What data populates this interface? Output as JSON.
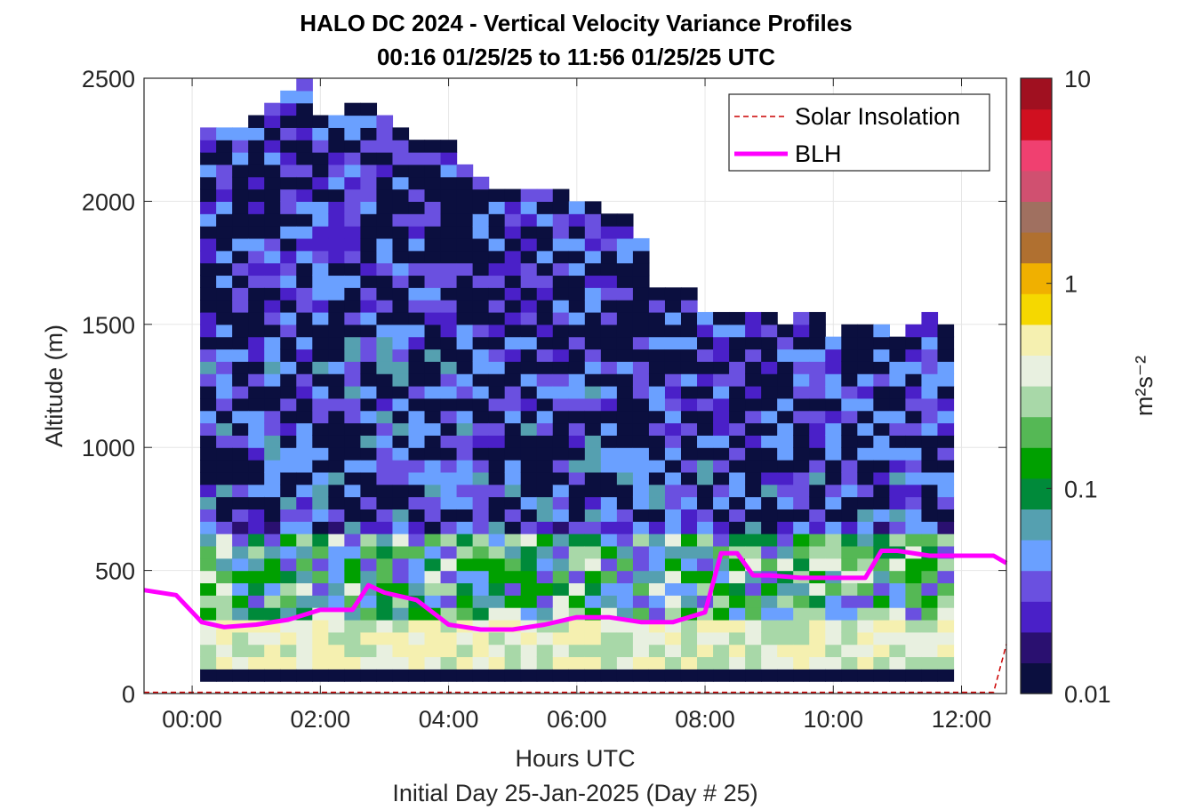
{
  "chart_data": {
    "type": "heatmap",
    "title": "HALO DC 2024 - Vertical Velocity Variance Profiles",
    "subtitle": "00:16 01/25/25 to 11:56 01/25/25  UTC",
    "xlabel": "Hours UTC",
    "xlabel2": "Initial Day 25-Jan-2025 (Day # 25)",
    "ylabel": "Altitude (m)",
    "xlim": [
      -0.75,
      12.7
    ],
    "ylim": [
      0,
      2500
    ],
    "xticks": [
      0,
      2,
      4,
      6,
      8,
      10,
      12
    ],
    "xtick_labels": [
      "00:00",
      "02:00",
      "04:00",
      "06:00",
      "08:00",
      "10:00",
      "12:00"
    ],
    "yticks": [
      0,
      500,
      1000,
      1500,
      2000,
      2500
    ],
    "ytick_labels": [
      "0",
      "500",
      "1000",
      "1500",
      "2000",
      "2500"
    ],
    "grid": true,
    "legend_position": "top-right",
    "legend": [
      {
        "name": "Solar Insolation",
        "style": "dashed",
        "color": "#cc0000"
      },
      {
        "name": "BLH",
        "style": "solid",
        "color": "#ff00ff"
      }
    ],
    "colorbar": {
      "label": "m²s⁻²",
      "scale": "log",
      "range": [
        0.01,
        10
      ],
      "tick_labels": [
        "0.01",
        "0.1",
        "1",
        "10"
      ],
      "colors": [
        "#0b0f3f",
        "#2a1070",
        "#4a20c8",
        "#6a50e0",
        "#6aa0ff",
        "#55a0b0",
        "#008a3a",
        "#00a000",
        "#55b855",
        "#a8d8a8",
        "#e8f0e0",
        "#f5f0b0",
        "#f5d800",
        "#f0b000",
        "#b07030",
        "#a07060",
        "#d05070",
        "#f04070",
        "#d01020",
        "#a01020"
      ]
    },
    "x": [
      0.25,
      0.5,
      0.75,
      1.0,
      1.25,
      1.5,
      1.75,
      2.0,
      2.25,
      2.5,
      2.75,
      3.0,
      3.25,
      3.5,
      3.75,
      4.0,
      4.25,
      4.5,
      4.75,
      5.0,
      5.25,
      5.5,
      5.75,
      6.0,
      6.25,
      6.5,
      6.75,
      7.0,
      7.25,
      7.5,
      7.75,
      8.0,
      8.25,
      8.5,
      8.75,
      9.0,
      9.25,
      9.5,
      9.75,
      10.0,
      10.25,
      10.5,
      10.75,
      11.0,
      11.25,
      11.5,
      11.75
    ],
    "column_tops": [
      2300,
      2300,
      2300,
      2350,
      2400,
      2450,
      2500,
      2350,
      2350,
      2400,
      2400,
      2350,
      2300,
      2250,
      2250,
      2250,
      2150,
      2100,
      2050,
      2050,
      2050,
      2050,
      2050,
      2000,
      2000,
      1950,
      1950,
      1850,
      1650,
      1650,
      1650,
      1550,
      1550,
      1550,
      1550,
      1550,
      1500,
      1550,
      1550,
      1450,
      1500,
      1500,
      1500,
      1450,
      1500,
      1550,
      1500
    ],
    "blh": {
      "x": [
        -0.75,
        -0.25,
        0.15,
        0.5,
        1.0,
        1.5,
        2.0,
        2.5,
        2.75,
        3.0,
        3.5,
        4.0,
        4.5,
        5.0,
        5.5,
        6.0,
        6.5,
        7.0,
        7.5,
        8.0,
        8.25,
        8.5,
        8.75,
        9.0,
        9.5,
        10.0,
        10.5,
        10.75,
        11.0,
        11.5,
        12.0,
        12.5,
        12.7
      ],
      "y": [
        420,
        400,
        290,
        270,
        280,
        300,
        340,
        340,
        440,
        410,
        380,
        280,
        260,
        260,
        280,
        310,
        310,
        290,
        290,
        330,
        570,
        570,
        480,
        480,
        470,
        470,
        470,
        580,
        580,
        560,
        560,
        560,
        530
      ]
    },
    "solar_insolation": {
      "x": [
        -0.75,
        12.5,
        12.7
      ],
      "y": [
        5,
        5,
        200
      ]
    }
  }
}
